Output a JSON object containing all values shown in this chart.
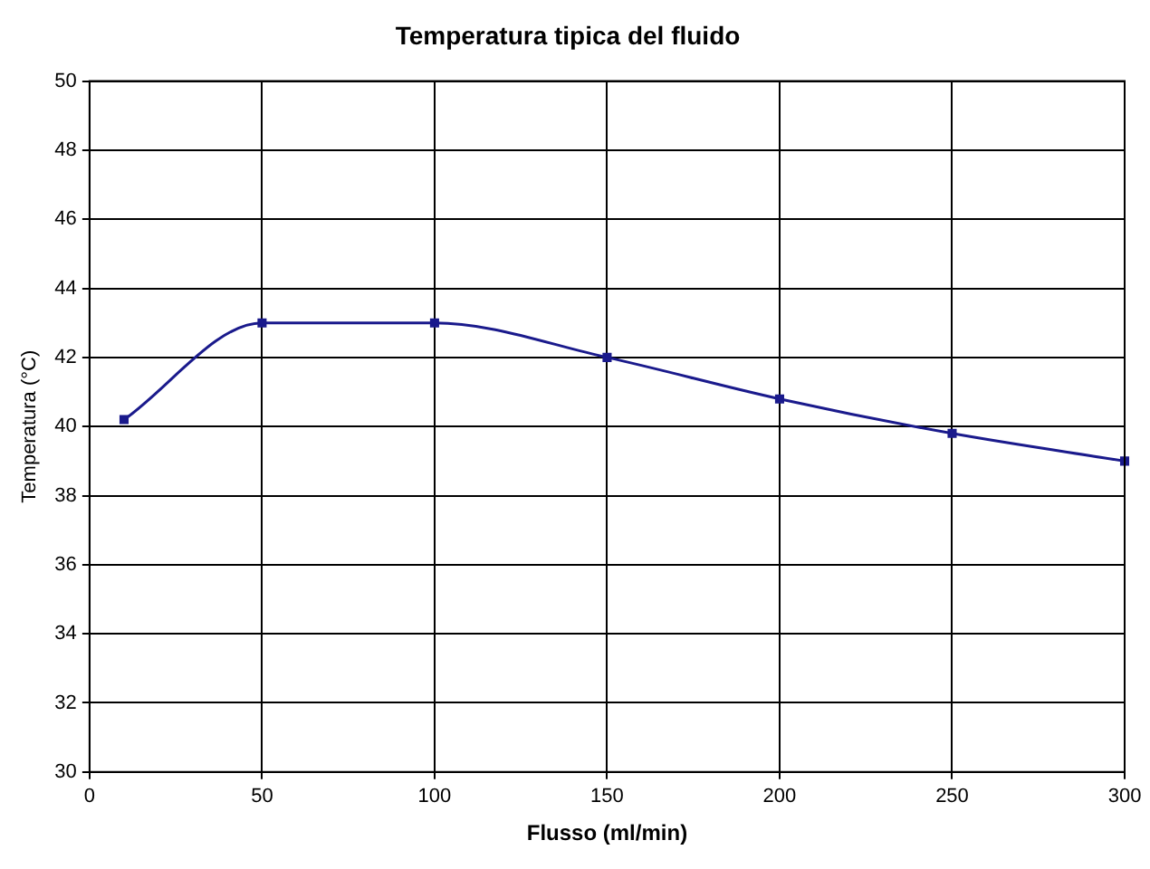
{
  "chart_data": {
    "type": "line",
    "title": "Temperatura tipica del fluido",
    "xlabel": "Flusso (ml/min)",
    "ylabel": "Temperatura (°C)",
    "x": [
      10,
      50,
      100,
      150,
      200,
      250,
      300
    ],
    "series": [
      {
        "color": "#1a1a8c",
        "values": [
          40.2,
          43.0,
          43.0,
          42.0,
          40.8,
          39.8,
          39.0
        ]
      }
    ],
    "xlim": [
      0,
      300
    ],
    "xticks": [
      0,
      50,
      100,
      150,
      200,
      250,
      300
    ],
    "ylim": [
      30,
      50
    ],
    "yticks": [
      30,
      32,
      34,
      36,
      38,
      40,
      42,
      44,
      46,
      48,
      50
    ],
    "grid": true,
    "legend": false,
    "marker": "square",
    "line_style": "solid"
  }
}
